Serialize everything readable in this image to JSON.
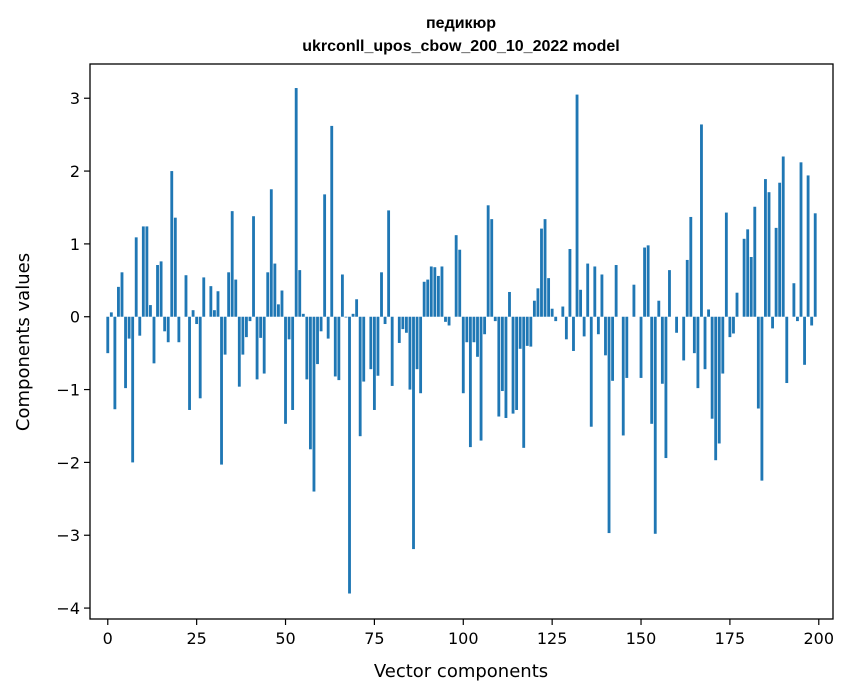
{
  "chart_data": {
    "type": "bar",
    "title": "педикюр",
    "subtitle": "ukrconll_upos_cbow_200_10_2022 model",
    "xlabel": "Vector components",
    "ylabel": "Components values",
    "xlim": [
      -5,
      204
    ],
    "ylim": [
      -4.15,
      3.47
    ],
    "xticks": [
      0,
      25,
      50,
      75,
      100,
      125,
      150,
      175,
      200
    ],
    "xtick_labels": [
      "0",
      "25",
      "50",
      "75",
      "100",
      "125",
      "150",
      "175",
      "200"
    ],
    "yticks": [
      -4,
      -3,
      -2,
      -1,
      0,
      1,
      2,
      3
    ],
    "ytick_labels": [
      "−4",
      "−3",
      "−2",
      "−1",
      "0",
      "1",
      "2",
      "3"
    ],
    "grid": false,
    "bar_color": "#1f77b4",
    "values": [
      -0.5,
      0.06,
      -1.27,
      0.41,
      0.61,
      -0.98,
      -0.3,
      -2.0,
      1.09,
      -0.26,
      1.24,
      1.24,
      0.16,
      -0.64,
      0.71,
      0.76,
      -0.2,
      -0.35,
      2.0,
      1.36,
      -0.35,
      0.0,
      0.57,
      -1.28,
      0.09,
      -0.1,
      -1.12,
      0.54,
      0.0,
      0.42,
      0.09,
      0.35,
      -2.03,
      -0.52,
      0.61,
      1.45,
      0.51,
      -0.96,
      -0.52,
      -0.28,
      -0.06,
      1.38,
      -0.86,
      -0.29,
      -0.78,
      0.61,
      1.75,
      0.73,
      0.17,
      0.36,
      -1.47,
      -0.31,
      -1.28,
      3.14,
      0.64,
      0.04,
      -0.86,
      -1.82,
      -2.4,
      -0.65,
      -0.2,
      1.68,
      -0.3,
      2.62,
      -0.82,
      -0.87,
      0.58,
      -0.01,
      -3.8,
      0.04,
      0.24,
      -1.64,
      -0.89,
      0.0,
      -0.72,
      -1.28,
      -0.81,
      0.61,
      -0.1,
      1.46,
      -0.95,
      0.0,
      -0.36,
      -0.17,
      -0.22,
      -1.0,
      -3.19,
      -0.72,
      -1.05,
      0.48,
      0.51,
      0.69,
      0.68,
      0.56,
      0.69,
      -0.07,
      -0.12,
      0.0,
      1.12,
      0.92,
      -1.05,
      -0.35,
      -1.79,
      -0.35,
      -0.55,
      -1.7,
      -0.24,
      1.53,
      1.34,
      -0.06,
      -1.37,
      -1.02,
      -1.39,
      0.34,
      -1.33,
      -1.28,
      -0.44,
      -1.8,
      -0.4,
      -0.41,
      0.22,
      0.39,
      1.21,
      1.34,
      0.53,
      0.11,
      -0.06,
      0.0,
      0.14,
      -0.31,
      0.93,
      -0.47,
      3.05,
      0.37,
      -0.27,
      0.73,
      -1.51,
      0.69,
      -0.24,
      0.58,
      -0.53,
      -2.97,
      -0.88,
      0.71,
      0.0,
      -1.63,
      -0.84,
      0.0,
      0.44,
      0.0,
      -0.84,
      0.95,
      0.98,
      -1.47,
      -2.98,
      0.22,
      -0.92,
      -1.94,
      0.64,
      0.0,
      -0.22,
      0.0,
      -0.6,
      0.78,
      1.37,
      -0.5,
      -0.98,
      2.64,
      -0.72,
      0.1,
      -1.4,
      -1.97,
      -1.74,
      -0.78,
      1.43,
      -0.28,
      -0.23,
      0.33,
      0.0,
      1.07,
      1.2,
      0.82,
      1.51,
      -1.26,
      -2.25,
      1.89,
      1.71,
      -0.16,
      1.22,
      1.84,
      2.2,
      -0.91,
      0.0,
      0.46,
      -0.06,
      2.12,
      -0.66,
      1.94,
      -0.12,
      1.42
    ]
  }
}
